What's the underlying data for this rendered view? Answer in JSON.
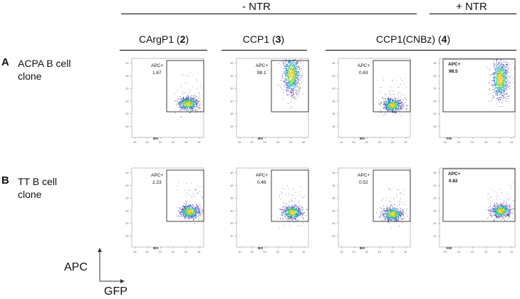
{
  "header": {
    "groups": [
      {
        "label": "- NTR"
      },
      {
        "label": "+ NTR"
      }
    ],
    "columns": [
      {
        "name": "CArgP1",
        "num": "2"
      },
      {
        "name": "CCP1",
        "num": "3"
      },
      {
        "name": "CCP1(CNBz)",
        "num": "4"
      }
    ]
  },
  "rows": [
    {
      "letter": "A",
      "label_line1": "ACPA B cell",
      "label_line2": "clone"
    },
    {
      "letter": "B",
      "label_line1": "TT B cell",
      "label_line2": "clone"
    }
  ],
  "axes": {
    "y": "APC",
    "x": "GFP"
  },
  "chart_data": [
    {
      "type": "scatter",
      "row": "A",
      "column": "CArgP1 (2)",
      "condition": "- NTR",
      "gate_label": "APC+",
      "gate_value": "1.67",
      "population_center": {
        "gfp_log": 3.75,
        "apc_log": 2.15
      }
    },
    {
      "type": "scatter",
      "row": "A",
      "column": "CCP1 (3)",
      "condition": "- NTR",
      "gate_label": "APC+",
      "gate_value": "98.1",
      "population_center": {
        "gfp_log": 3.65,
        "apc_log": 4.0
      }
    },
    {
      "type": "scatter",
      "row": "A",
      "column": "CCP1(CNBz) (4)",
      "condition": "- NTR",
      "gate_label": "APC+",
      "gate_value": "0.63",
      "population_center": {
        "gfp_log": 3.6,
        "apc_log": 2.05
      }
    },
    {
      "type": "scatter",
      "row": "A",
      "column": "CCP1(CNBz) (4)",
      "condition": "+ NTR",
      "gate_label": "APC+",
      "gate_value": "98.5",
      "population_center": {
        "gfp_log": 3.85,
        "apc_log": 3.7
      }
    },
    {
      "type": "scatter",
      "row": "B",
      "column": "CArgP1 (2)",
      "condition": "- NTR",
      "gate_label": "APC+",
      "gate_value": "2.23",
      "population_center": {
        "gfp_log": 3.85,
        "apc_log": 2.25
      }
    },
    {
      "type": "scatter",
      "row": "B",
      "column": "CCP1 (3)",
      "condition": "- NTR",
      "gate_label": "APC+",
      "gate_value": "0.48",
      "population_center": {
        "gfp_log": 3.7,
        "apc_log": 2.2
      }
    },
    {
      "type": "scatter",
      "row": "B",
      "column": "CCP1(CNBz) (4)",
      "condition": "- NTR",
      "gate_label": "APC+",
      "gate_value": "0.52",
      "population_center": {
        "gfp_log": 3.6,
        "apc_log": 2.1
      }
    },
    {
      "type": "scatter",
      "row": "B",
      "column": "CCP1(CNBz) (4)",
      "condition": "+ NTR",
      "gate_label": "APC+",
      "gate_value": "0.82",
      "population_center": {
        "gfp_log": 3.9,
        "apc_log": 2.3
      }
    }
  ]
}
